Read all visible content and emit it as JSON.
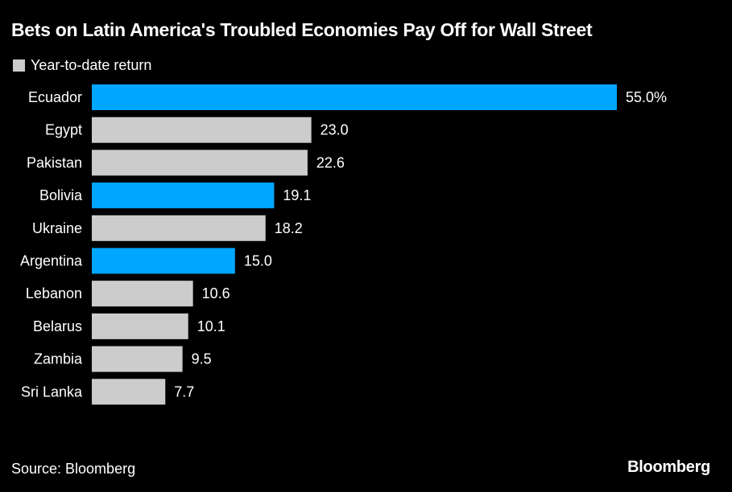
{
  "chart_data": {
    "type": "bar",
    "orientation": "horizontal",
    "title": "Bets on Latin America's Troubled Economies Pay Off for Wall Street",
    "legend": [
      "Year-to-date return"
    ],
    "categories": [
      "Ecuador",
      "Egypt",
      "Pakistan",
      "Bolivia",
      "Ukraine",
      "Argentina",
      "Lebanon",
      "Belarus",
      "Zambia",
      "Sri Lanka"
    ],
    "values": [
      55.0,
      23.0,
      22.6,
      19.1,
      18.2,
      15.0,
      10.6,
      10.1,
      9.5,
      7.7
    ],
    "data_labels": [
      "55.0%",
      "23.0",
      "22.6",
      "19.1",
      "18.2",
      "15.0",
      "10.6",
      "10.1",
      "9.5",
      "7.7"
    ],
    "highlighted": [
      true,
      false,
      false,
      true,
      false,
      true,
      false,
      false,
      false,
      false
    ],
    "colors": {
      "highlight": "#00a6ff",
      "default": "#cccccc",
      "background": "#000000"
    },
    "xlim": [
      0,
      55
    ],
    "grid": false
  },
  "source": "Source: Bloomberg",
  "logo": "Bloomberg"
}
